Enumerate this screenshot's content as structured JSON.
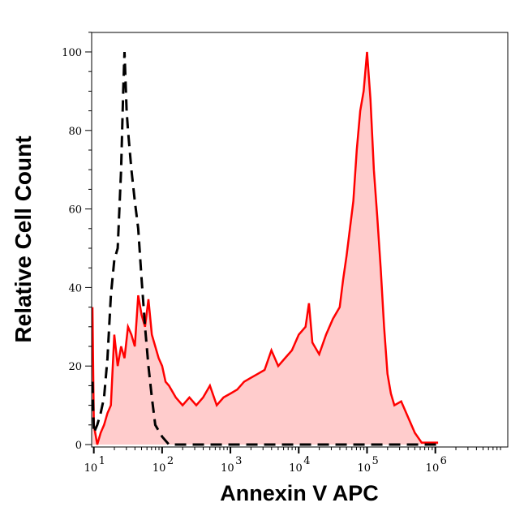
{
  "chart_data": {
    "type": "area",
    "title": "",
    "xlabel": "Annexin V APC",
    "ylabel": "Relative Cell Count",
    "x_scale": "log",
    "xlim": [
      9.3,
      11500000
    ],
    "ylim": [
      0,
      105
    ],
    "x_ticks": [
      {
        "base": "10",
        "exp": "1",
        "v": 1
      },
      {
        "base": "10",
        "exp": "2",
        "v": 2
      },
      {
        "base": "10",
        "exp": "3",
        "v": 3
      },
      {
        "base": "10",
        "exp": "4",
        "v": 4
      },
      {
        "base": "10",
        "exp": "5",
        "v": 5
      },
      {
        "base": "10",
        "exp": "6",
        "v": 6
      }
    ],
    "y_ticks": [
      "0",
      "20",
      "40",
      "60",
      "80",
      "100"
    ],
    "grid": false,
    "series": [
      {
        "style": "filled",
        "line_color": "#ff0000",
        "fill_color": "#ffcccc",
        "log10_x": [
          0.98,
          1.0,
          1.05,
          1.1,
          1.15,
          1.2,
          1.25,
          1.3,
          1.35,
          1.4,
          1.45,
          1.5,
          1.55,
          1.6,
          1.65,
          1.7,
          1.75,
          1.8,
          1.85,
          1.9,
          1.95,
          2.0,
          2.05,
          2.1,
          2.2,
          2.3,
          2.4,
          2.5,
          2.6,
          2.7,
          2.8,
          2.9,
          3.0,
          3.1,
          3.2,
          3.3,
          3.4,
          3.5,
          3.6,
          3.7,
          3.8,
          3.9,
          4.0,
          4.1,
          4.15,
          4.2,
          4.3,
          4.4,
          4.5,
          4.6,
          4.65,
          4.7,
          4.75,
          4.8,
          4.85,
          4.9,
          4.95,
          5.0,
          5.05,
          5.1,
          5.15,
          5.2,
          5.25,
          5.3,
          5.35,
          5.4,
          5.5,
          5.6,
          5.7,
          5.8,
          5.9,
          6.0,
          6.04
        ],
        "y": [
          35,
          5,
          0,
          3,
          5,
          8,
          10,
          28,
          20,
          25,
          22,
          30,
          28,
          25,
          38,
          33,
          30,
          37,
          28,
          25,
          22,
          20,
          16,
          15,
          12,
          10,
          12,
          10,
          12,
          15,
          10,
          12,
          13,
          14,
          16,
          17,
          18,
          19,
          24,
          20,
          22,
          24,
          28,
          30,
          36,
          26,
          23,
          28,
          32,
          35,
          42,
          48,
          55,
          62,
          75,
          85,
          90,
          100,
          88,
          70,
          58,
          45,
          30,
          18,
          13,
          10,
          11,
          7,
          3,
          0.5,
          0.5,
          0.5,
          0.5
        ]
      },
      {
        "style": "dashed",
        "line_color": "#000000",
        "log10_x": [
          0.98,
          1.0,
          1.05,
          1.1,
          1.15,
          1.2,
          1.25,
          1.3,
          1.35,
          1.4,
          1.43,
          1.45,
          1.48,
          1.5,
          1.55,
          1.6,
          1.65,
          1.7,
          1.75,
          1.8,
          1.85,
          1.9,
          2.0,
          2.1,
          2.2,
          3,
          4,
          5,
          6.04
        ],
        "y": [
          16,
          3,
          5,
          8,
          12,
          22,
          38,
          47,
          50,
          70,
          90,
          100,
          85,
          80,
          70,
          62,
          55,
          42,
          30,
          20,
          12,
          5,
          2,
          0,
          0,
          0,
          0,
          0,
          0
        ]
      }
    ]
  }
}
